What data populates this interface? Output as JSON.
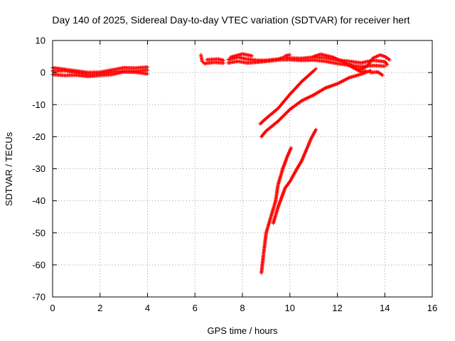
{
  "chart_data": {
    "type": "scatter",
    "title": "Day 140 of 2025, Sidereal Day-to-day VTEC variation (SDTVAR) for receiver hert",
    "xlabel": "GPS time / hours",
    "ylabel": "SDTVAR / TECUs",
    "xlim": [
      0,
      16
    ],
    "ylim": [
      -70,
      10
    ],
    "x_ticks": [
      0,
      2,
      4,
      6,
      8,
      10,
      12,
      14,
      16
    ],
    "y_ticks": [
      10,
      0,
      -10,
      -20,
      -30,
      -40,
      -50,
      -60,
      -70
    ],
    "grid": true,
    "legend": "none",
    "marker": "+",
    "color": "#ff0000",
    "series": [
      {
        "segments": [
          [
            [
              0.0,
              0.5
            ],
            [
              0.5,
              0.6
            ],
            [
              1.0,
              0.0
            ],
            [
              1.5,
              -0.6
            ],
            [
              2.0,
              -0.4
            ],
            [
              2.5,
              0.2
            ],
            [
              3.0,
              0.4
            ],
            [
              3.5,
              0.4
            ],
            [
              4.0,
              0.8
            ]
          ],
          [
            [
              0.0,
              -0.6
            ],
            [
              0.5,
              -0.9
            ],
            [
              1.0,
              -0.8
            ],
            [
              1.5,
              -1.2
            ],
            [
              2.0,
              -0.9
            ],
            [
              2.5,
              -0.6
            ],
            [
              3.0,
              0.2
            ],
            [
              3.5,
              0.1
            ],
            [
              4.0,
              -0.4
            ]
          ],
          [
            [
              0.0,
              1.5
            ],
            [
              0.5,
              1.0
            ],
            [
              1.0,
              0.5
            ],
            [
              1.5,
              0.0
            ],
            [
              2.0,
              0.1
            ],
            [
              2.5,
              0.8
            ],
            [
              3.0,
              1.5
            ],
            [
              3.5,
              1.4
            ],
            [
              4.0,
              1.7
            ]
          ],
          [
            [
              6.25,
              5.5
            ],
            [
              6.3,
              3.5
            ],
            [
              6.4,
              2.8
            ],
            [
              6.8,
              3.2
            ],
            [
              7.2,
              3.0
            ]
          ],
          [
            [
              6.5,
              4.0
            ],
            [
              7.0,
              4.2
            ],
            [
              7.2,
              3.8
            ]
          ],
          [
            [
              7.4,
              4.0
            ],
            [
              7.8,
              4.8
            ],
            [
              8.2,
              4.2
            ],
            [
              8.6,
              3.8
            ],
            [
              9.0,
              3.8
            ],
            [
              9.5,
              4.2
            ],
            [
              9.8,
              4.8
            ],
            [
              10.0,
              4.5
            ],
            [
              10.5,
              4.4
            ],
            [
              11.0,
              4.8
            ],
            [
              11.5,
              4.6
            ],
            [
              12.0,
              3.9
            ],
            [
              12.5,
              3.5
            ],
            [
              13.0,
              3.0
            ],
            [
              13.5,
              3.8
            ],
            [
              14.0,
              3.4
            ],
            [
              14.1,
              2.5
            ]
          ],
          [
            [
              7.4,
              3.0
            ],
            [
              7.8,
              3.5
            ],
            [
              8.2,
              3.0
            ],
            [
              8.6,
              3.2
            ],
            [
              9.0,
              3.5
            ],
            [
              9.6,
              4.0
            ],
            [
              10.0,
              4.0
            ],
            [
              10.5,
              3.8
            ],
            [
              11.0,
              3.9
            ],
            [
              11.5,
              3.5
            ],
            [
              12.0,
              2.8
            ],
            [
              12.5,
              2.3
            ],
            [
              13.0,
              1.8
            ],
            [
              13.5,
              2.2
            ],
            [
              14.0,
              2.0
            ]
          ],
          [
            [
              7.5,
              4.8
            ],
            [
              8.0,
              5.8
            ],
            [
              8.4,
              5.2
            ]
          ],
          [
            [
              9.8,
              5.2
            ],
            [
              10.0,
              5.5
            ]
          ],
          [
            [
              11.0,
              5.0
            ],
            [
              11.3,
              5.7
            ],
            [
              11.8,
              4.8
            ],
            [
              12.2,
              3.5
            ],
            [
              12.6,
              1.8
            ],
            [
              13.0,
              0.2
            ],
            [
              13.2,
              0.5
            ]
          ],
          [
            [
              12.5,
              2.6
            ],
            [
              12.8,
              1.2
            ],
            [
              13.0,
              1.0
            ],
            [
              13.3,
              2.3
            ],
            [
              13.5,
              4.5
            ],
            [
              13.8,
              5.5
            ],
            [
              14.0,
              5.0
            ],
            [
              14.2,
              4.0
            ]
          ],
          [
            [
              13.4,
              0.0
            ],
            [
              13.7,
              0.2
            ],
            [
              13.9,
              -0.8
            ]
          ],
          [
            [
              8.75,
              -16.0
            ],
            [
              9.0,
              -14.3
            ],
            [
              9.5,
              -11.2
            ],
            [
              10.0,
              -6.8
            ],
            [
              10.5,
              -2.8
            ],
            [
              11.0,
              0.5
            ],
            [
              11.1,
              1.2
            ]
          ],
          [
            [
              8.8,
              -20.0
            ],
            [
              9.0,
              -18.2
            ],
            [
              9.5,
              -15.2
            ],
            [
              10.0,
              -11.5
            ],
            [
              10.5,
              -8.8
            ],
            [
              11.0,
              -7.0
            ],
            [
              11.5,
              -4.8
            ],
            [
              12.0,
              -3.5
            ],
            [
              12.5,
              -1.6
            ],
            [
              13.0,
              -0.5
            ],
            [
              13.4,
              0.6
            ]
          ],
          [
            [
              8.8,
              -62.5
            ],
            [
              8.9,
              -56.0
            ],
            [
              9.0,
              -50.0
            ],
            [
              9.2,
              -45.0
            ],
            [
              9.4,
              -40.0
            ],
            [
              9.5,
              -35.0
            ],
            [
              9.7,
              -30.0
            ],
            [
              9.9,
              -26.0
            ],
            [
              10.05,
              -23.5
            ]
          ],
          [
            [
              9.3,
              -47.0
            ],
            [
              9.5,
              -42.0
            ],
            [
              9.8,
              -36.0
            ],
            [
              10.0,
              -34.0
            ],
            [
              10.3,
              -30.0
            ],
            [
              10.5,
              -27.5
            ],
            [
              10.7,
              -24.0
            ],
            [
              10.9,
              -20.5
            ],
            [
              11.1,
              -17.8
            ]
          ]
        ]
      }
    ]
  }
}
